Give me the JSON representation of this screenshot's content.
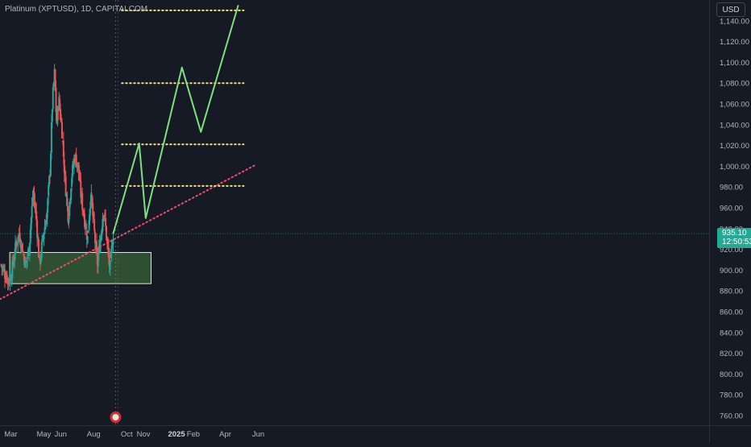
{
  "header": {
    "symbol_title": "Platinum (XPTUSD), 1D, CAPITALCOM"
  },
  "axis": {
    "currency": "USD"
  },
  "last_price": {
    "value": "935.10",
    "countdown": "12:50:53"
  },
  "colors": {
    "background": "#161a25",
    "up": "#26a69a",
    "down": "#ef5350",
    "projection": "#7fe07f",
    "trendline": "#f04b68",
    "levels": "#f3e27a",
    "zone_fill": "#3e6b3a",
    "zone_border": "#dfe9c7",
    "last_price_badge": "#22ab94"
  },
  "chart_data": {
    "type": "candlestick",
    "y_axis": {
      "position": "right",
      "min": 750,
      "max": 1150,
      "tick_labels": [
        "760.00",
        "780.00",
        "800.00",
        "820.00",
        "840.00",
        "860.00",
        "880.00",
        "900.00",
        "920.00",
        "940.00",
        "960.00",
        "980.00",
        "1,000.00",
        "1,020.00",
        "1,040.00",
        "1,060.00",
        "1,080.00",
        "1,100.00",
        "1,120.00",
        "1,140.00"
      ],
      "tick_values": [
        760,
        780,
        800,
        820,
        840,
        860,
        880,
        900,
        920,
        940,
        960,
        980,
        1000,
        1020,
        1040,
        1060,
        1080,
        1100,
        1120,
        1140
      ]
    },
    "x_axis": {
      "labels": [
        "Mar",
        "May",
        "Jun",
        "Aug",
        "Oct",
        "Nov",
        "2025",
        "Feb",
        "Apr",
        "Jun"
      ],
      "label_dates": [
        "2024-03-01",
        "2024-05-01",
        "2024-06-01",
        "2024-08-01",
        "2024-10-01",
        "2024-11-01",
        "2025-01-01",
        "2025-02-01",
        "2025-04-01",
        "2025-06-01"
      ],
      "range": [
        "2024-02-10",
        "2025-07-10"
      ]
    },
    "grid": false,
    "series": [
      {
        "type": "candles",
        "start": "2024-02-12",
        "end": "2024-09-06",
        "close_path": [
          [
            0,
            905
          ],
          [
            8,
            895
          ],
          [
            16,
            890
          ],
          [
            22,
            905
          ],
          [
            28,
            925
          ],
          [
            34,
            935
          ],
          [
            40,
            920
          ],
          [
            46,
            905
          ],
          [
            52,
            920
          ],
          [
            60,
            975
          ],
          [
            66,
            950
          ],
          [
            72,
            905
          ],
          [
            78,
            930
          ],
          [
            86,
            955
          ],
          [
            92,
            1000
          ],
          [
            96,
            1060
          ],
          [
            100,
            1090
          ],
          [
            104,
            1040
          ],
          [
            108,
            1065
          ],
          [
            114,
            1035
          ],
          [
            120,
            985
          ],
          [
            126,
            950
          ],
          [
            132,
            990
          ],
          [
            138,
            1010
          ],
          [
            144,
            1000
          ],
          [
            150,
            970
          ],
          [
            156,
            950
          ],
          [
            162,
            930
          ],
          [
            168,
            975
          ],
          [
            174,
            940
          ],
          [
            180,
            905
          ],
          [
            186,
            930
          ],
          [
            192,
            960
          ],
          [
            196,
            940
          ],
          [
            200,
            918
          ],
          [
            204,
            900
          ],
          [
            208,
            925
          ],
          [
            210,
            935
          ]
        ],
        "seed": 7
      },
      {
        "name": "",
        "type": "projection",
        "color": "#7fe07f",
        "points": [
          [
            "2024-09-06",
            935
          ],
          [
            "2024-10-24",
            1022
          ],
          [
            "2024-11-05",
            950
          ],
          [
            "2025-01-11",
            1095
          ],
          [
            "2025-02-15",
            1033
          ],
          [
            "2025-04-25",
            1155
          ]
        ]
      }
    ],
    "trendline": {
      "style": "dotted",
      "color": "#f04b68",
      "points": [
        [
          "2024-02-10",
          872
        ],
        [
          "2025-05-26",
          1001
        ]
      ]
    },
    "levels": [
      {
        "style": "dotted",
        "color": "#f3e27a",
        "start": "2024-09-22",
        "end": "2025-05-05",
        "value": 1150
      },
      {
        "style": "dotted",
        "color": "#f3e27a",
        "start": "2024-09-22",
        "end": "2025-05-05",
        "value": 1080
      },
      {
        "style": "dotted",
        "color": "#f3e27a",
        "start": "2024-09-22",
        "end": "2025-05-05",
        "value": 1021
      },
      {
        "style": "dotted",
        "color": "#f3e27a",
        "start": "2024-09-22",
        "end": "2025-05-05",
        "value": 981
      }
    ],
    "zone": {
      "start": "2024-02-28",
      "end": "2024-11-15",
      "low": 887,
      "high": 917
    },
    "last_price_line": 935.1
  }
}
